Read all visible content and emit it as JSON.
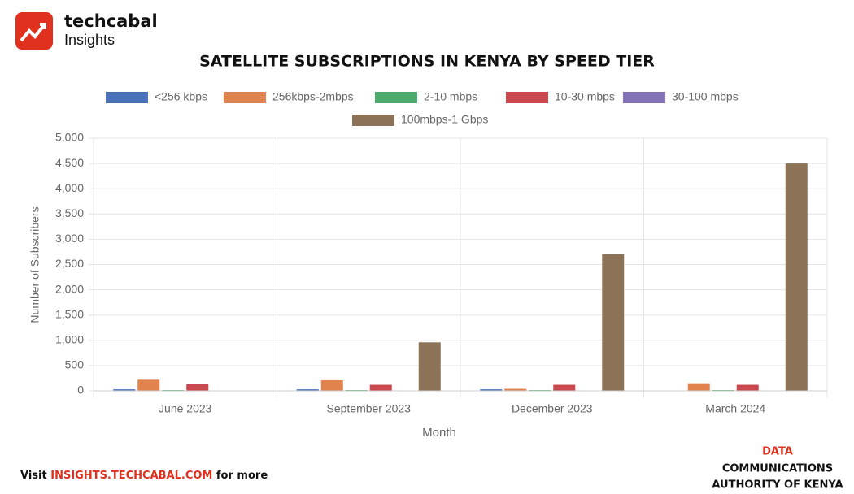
{
  "brand": {
    "name": "techcabal",
    "sub": "Insights"
  },
  "chart_data": {
    "type": "bar",
    "title": "SATELLITE SUBSCRIPTIONS IN KENYA BY SPEED TIER",
    "x_label": "Month",
    "y_label": "Number of Subscribers",
    "categories": [
      "June 2023",
      "September 2023",
      "December 2023",
      "March 2024"
    ],
    "series": [
      {
        "name": "<256 kbps",
        "color": "#4a72b8",
        "values": [
          30,
          30,
          30,
          0
        ]
      },
      {
        "name": "256kbps-2mbps",
        "color": "#e0834f",
        "values": [
          220,
          210,
          40,
          150
        ]
      },
      {
        "name": "2-10 mbps",
        "color": "#4aab6a",
        "values": [
          15,
          15,
          15,
          15
        ]
      },
      {
        "name": "10-30 mbps",
        "color": "#c9474f",
        "values": [
          130,
          120,
          120,
          120
        ]
      },
      {
        "name": "30-100 mbps",
        "color": "#8571b5",
        "values": [
          0,
          0,
          0,
          0
        ]
      },
      {
        "name": "100mbps-1 Gbps",
        "color": "#8c7357",
        "values": [
          0,
          960,
          2710,
          4500
        ]
      }
    ],
    "ylim": [
      0,
      5000
    ],
    "yticks": [
      0,
      500,
      {
        "value": 1000,
        "label": "1,000"
      },
      {
        "value": 1500,
        "label": "1,500"
      },
      {
        "value": 2000,
        "label": "2,000"
      },
      {
        "value": 2500,
        "label": "2,500"
      },
      {
        "value": 3000,
        "label": "3,000"
      },
      {
        "value": 3500,
        "label": "3,500"
      },
      {
        "value": 4000,
        "label": "4,000"
      },
      {
        "value": 4500,
        "label": "4,500"
      },
      {
        "value": 5000,
        "label": "5,000"
      }
    ],
    "grid": true
  },
  "footer": {
    "visit": "Visit",
    "link": "INSIGHTS.TECHCABAL.COM",
    "more": "for more",
    "source_label": "DATA",
    "source": [
      "COMMUNICATIONS",
      "AUTHORITY OF KENYA"
    ]
  }
}
